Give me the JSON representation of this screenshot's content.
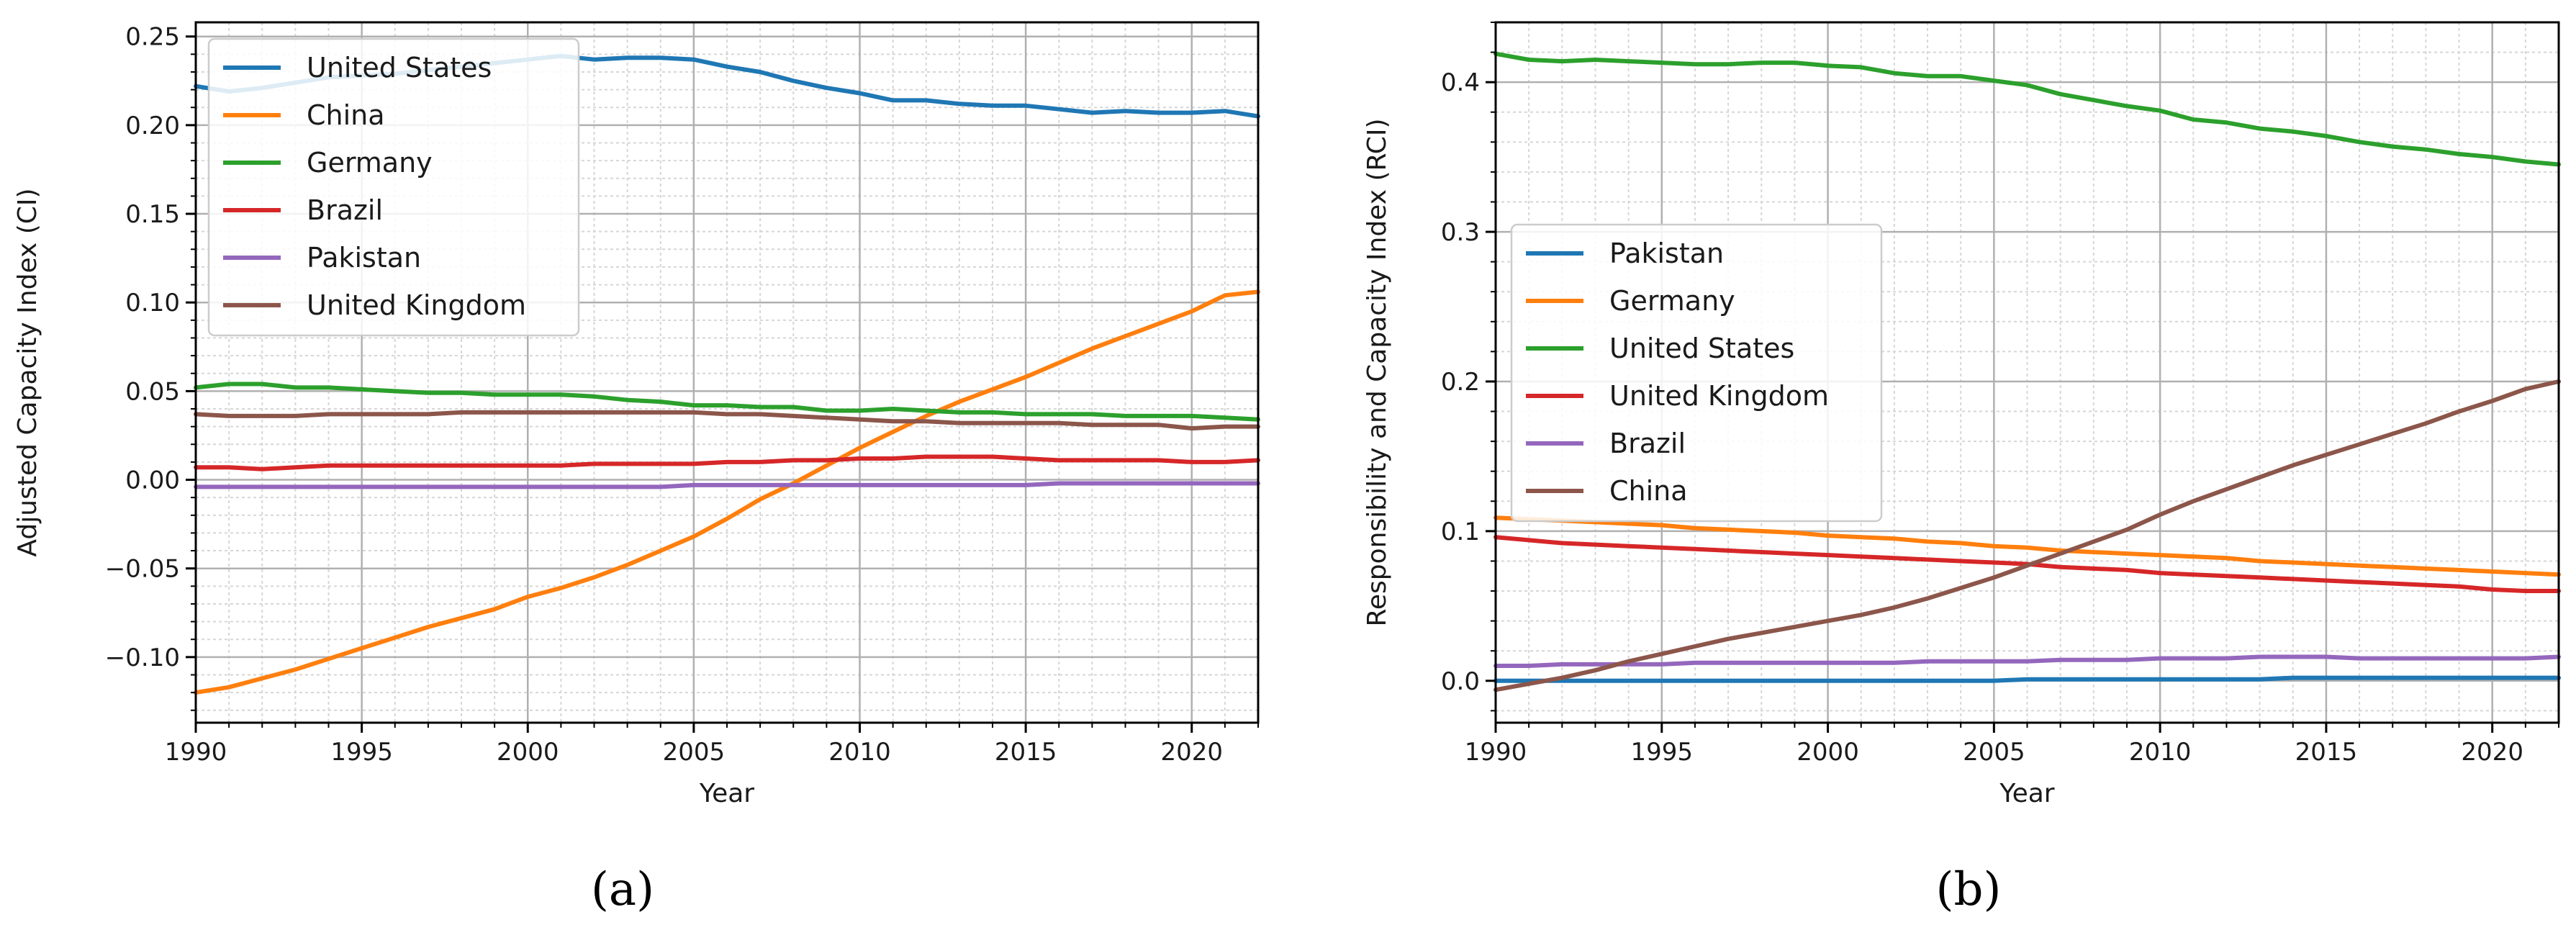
{
  "chart_data": [
    {
      "type": "line",
      "panel_label": "(a)",
      "xlabel": "Year",
      "ylabel": "Adjusted Capacity Index (CI)",
      "xlim": [
        1990,
        2022
      ],
      "ylim": [
        -0.137,
        0.258
      ],
      "x_ticks": [
        1990,
        1995,
        2000,
        2005,
        2010,
        2015,
        2020
      ],
      "y_ticks": [
        -0.1,
        -0.05,
        0.0,
        0.05,
        0.1,
        0.15,
        0.2,
        0.25
      ],
      "y_tick_labels": [
        "−0.10",
        "−0.05",
        "0.00",
        "0.05",
        "0.10",
        "0.15",
        "0.20",
        "0.25"
      ],
      "grid": true,
      "minor_grid": true,
      "legend_position": "top-left",
      "x": [
        1990,
        1991,
        1992,
        1993,
        1994,
        1995,
        1996,
        1997,
        1998,
        1999,
        2000,
        2001,
        2002,
        2003,
        2004,
        2005,
        2006,
        2007,
        2008,
        2009,
        2010,
        2011,
        2012,
        2013,
        2014,
        2015,
        2016,
        2017,
        2018,
        2019,
        2020,
        2021,
        2022
      ],
      "series": [
        {
          "name": "United States",
          "color": "#1f77b4",
          "values": [
            0.222,
            0.219,
            0.221,
            0.224,
            0.227,
            0.228,
            0.229,
            0.231,
            0.233,
            0.235,
            0.237,
            0.239,
            0.237,
            0.238,
            0.238,
            0.237,
            0.233,
            0.23,
            0.225,
            0.221,
            0.218,
            0.214,
            0.214,
            0.212,
            0.211,
            0.211,
            0.209,
            0.207,
            0.208,
            0.207,
            0.207,
            0.208,
            0.205
          ]
        },
        {
          "name": "China",
          "color": "#ff7f0e",
          "values": [
            -0.12,
            -0.117,
            -0.112,
            -0.107,
            -0.101,
            -0.095,
            -0.089,
            -0.083,
            -0.078,
            -0.073,
            -0.066,
            -0.061,
            -0.055,
            -0.048,
            -0.04,
            -0.032,
            -0.022,
            -0.011,
            -0.002,
            0.008,
            0.018,
            0.027,
            0.036,
            0.044,
            0.051,
            0.058,
            0.066,
            0.074,
            0.081,
            0.088,
            0.095,
            0.104,
            0.106
          ]
        },
        {
          "name": "Germany",
          "color": "#2ca02c",
          "values": [
            0.052,
            0.054,
            0.054,
            0.052,
            0.052,
            0.051,
            0.05,
            0.049,
            0.049,
            0.048,
            0.048,
            0.048,
            0.047,
            0.045,
            0.044,
            0.042,
            0.042,
            0.041,
            0.041,
            0.039,
            0.039,
            0.04,
            0.039,
            0.038,
            0.038,
            0.037,
            0.037,
            0.037,
            0.036,
            0.036,
            0.036,
            0.035,
            0.034
          ]
        },
        {
          "name": "Brazil",
          "color": "#d62728",
          "values": [
            0.007,
            0.007,
            0.006,
            0.007,
            0.008,
            0.008,
            0.008,
            0.008,
            0.008,
            0.008,
            0.008,
            0.008,
            0.009,
            0.009,
            0.009,
            0.009,
            0.01,
            0.01,
            0.011,
            0.011,
            0.012,
            0.012,
            0.013,
            0.013,
            0.013,
            0.012,
            0.011,
            0.011,
            0.011,
            0.011,
            0.01,
            0.01,
            0.011
          ]
        },
        {
          "name": "Pakistan",
          "color": "#9467bd",
          "values": [
            -0.004,
            -0.004,
            -0.004,
            -0.004,
            -0.004,
            -0.004,
            -0.004,
            -0.004,
            -0.004,
            -0.004,
            -0.004,
            -0.004,
            -0.004,
            -0.004,
            -0.004,
            -0.003,
            -0.003,
            -0.003,
            -0.003,
            -0.003,
            -0.003,
            -0.003,
            -0.003,
            -0.003,
            -0.003,
            -0.003,
            -0.002,
            -0.002,
            -0.002,
            -0.002,
            -0.002,
            -0.002,
            -0.002
          ]
        },
        {
          "name": "United Kingdom",
          "color": "#8c564b",
          "values": [
            0.037,
            0.036,
            0.036,
            0.036,
            0.037,
            0.037,
            0.037,
            0.037,
            0.038,
            0.038,
            0.038,
            0.038,
            0.038,
            0.038,
            0.038,
            0.038,
            0.037,
            0.037,
            0.036,
            0.035,
            0.034,
            0.033,
            0.033,
            0.032,
            0.032,
            0.032,
            0.032,
            0.031,
            0.031,
            0.031,
            0.029,
            0.03,
            0.03
          ]
        }
      ]
    },
    {
      "type": "line",
      "panel_label": "(b)",
      "xlabel": "Year",
      "ylabel": "Responsibility and Capacity Index (RCI)",
      "xlim": [
        1990,
        2022
      ],
      "ylim": [
        -0.028,
        0.44
      ],
      "x_ticks": [
        1990,
        1995,
        2000,
        2005,
        2010,
        2015,
        2020
      ],
      "y_ticks": [
        0.0,
        0.1,
        0.2,
        0.3,
        0.4
      ],
      "y_tick_labels": [
        "0.0",
        "0.1",
        "0.2",
        "0.3",
        "0.4"
      ],
      "grid": true,
      "minor_grid": true,
      "legend_position": "center-left",
      "x": [
        1990,
        1991,
        1992,
        1993,
        1994,
        1995,
        1996,
        1997,
        1998,
        1999,
        2000,
        2001,
        2002,
        2003,
        2004,
        2005,
        2006,
        2007,
        2008,
        2009,
        2010,
        2011,
        2012,
        2013,
        2014,
        2015,
        2016,
        2017,
        2018,
        2019,
        2020,
        2021,
        2022
      ],
      "series": [
        {
          "name": "Pakistan",
          "color": "#1f77b4",
          "values": [
            0.0,
            0.0,
            0.0,
            0.0,
            0.0,
            0.0,
            0.0,
            0.0,
            0.0,
            0.0,
            0.0,
            0.0,
            0.0,
            0.0,
            0.0,
            0.0,
            0.001,
            0.001,
            0.001,
            0.001,
            0.001,
            0.001,
            0.001,
            0.001,
            0.002,
            0.002,
            0.002,
            0.002,
            0.002,
            0.002,
            0.002,
            0.002,
            0.002
          ]
        },
        {
          "name": "Germany",
          "color": "#ff7f0e",
          "values": [
            0.109,
            0.108,
            0.107,
            0.106,
            0.105,
            0.104,
            0.102,
            0.101,
            0.1,
            0.099,
            0.097,
            0.096,
            0.095,
            0.093,
            0.092,
            0.09,
            0.089,
            0.087,
            0.086,
            0.085,
            0.084,
            0.083,
            0.082,
            0.08,
            0.079,
            0.078,
            0.077,
            0.076,
            0.075,
            0.074,
            0.073,
            0.072,
            0.071
          ]
        },
        {
          "name": "United States",
          "color": "#2ca02c",
          "values": [
            0.419,
            0.415,
            0.414,
            0.415,
            0.414,
            0.413,
            0.412,
            0.412,
            0.413,
            0.413,
            0.411,
            0.41,
            0.406,
            0.404,
            0.404,
            0.401,
            0.398,
            0.392,
            0.388,
            0.384,
            0.381,
            0.375,
            0.373,
            0.369,
            0.367,
            0.364,
            0.36,
            0.357,
            0.355,
            0.352,
            0.35,
            0.347,
            0.345
          ]
        },
        {
          "name": "United Kingdom",
          "color": "#d62728",
          "values": [
            0.096,
            0.094,
            0.092,
            0.091,
            0.09,
            0.089,
            0.088,
            0.087,
            0.086,
            0.085,
            0.084,
            0.083,
            0.082,
            0.081,
            0.08,
            0.079,
            0.078,
            0.076,
            0.075,
            0.074,
            0.072,
            0.071,
            0.07,
            0.069,
            0.068,
            0.067,
            0.066,
            0.065,
            0.064,
            0.063,
            0.061,
            0.06,
            0.06
          ]
        },
        {
          "name": "Brazil",
          "color": "#9467bd",
          "values": [
            0.01,
            0.01,
            0.011,
            0.011,
            0.011,
            0.011,
            0.012,
            0.012,
            0.012,
            0.012,
            0.012,
            0.012,
            0.012,
            0.013,
            0.013,
            0.013,
            0.013,
            0.014,
            0.014,
            0.014,
            0.015,
            0.015,
            0.015,
            0.016,
            0.016,
            0.016,
            0.015,
            0.015,
            0.015,
            0.015,
            0.015,
            0.015,
            0.016
          ]
        },
        {
          "name": "China",
          "color": "#8c564b",
          "values": [
            -0.006,
            -0.002,
            0.002,
            0.007,
            0.013,
            0.018,
            0.023,
            0.028,
            0.032,
            0.036,
            0.04,
            0.044,
            0.049,
            0.055,
            0.062,
            0.069,
            0.077,
            0.085,
            0.093,
            0.101,
            0.111,
            0.12,
            0.128,
            0.136,
            0.144,
            0.151,
            0.158,
            0.165,
            0.172,
            0.18,
            0.187,
            0.195,
            0.2
          ]
        }
      ]
    }
  ]
}
